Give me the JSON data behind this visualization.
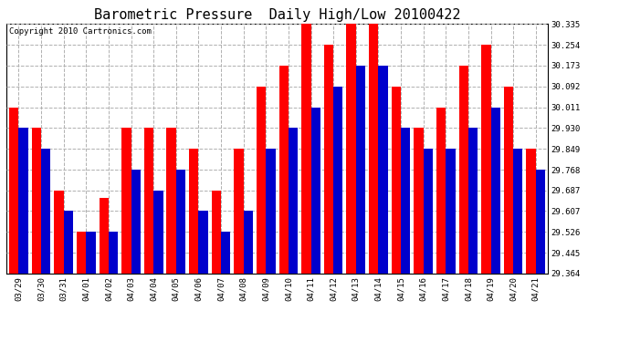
{
  "title": "Barometric Pressure  Daily High/Low 20100422",
  "copyright": "Copyright 2010 Cartronics.com",
  "categories": [
    "03/29",
    "03/30",
    "03/31",
    "04/01",
    "04/02",
    "04/03",
    "04/04",
    "04/05",
    "04/06",
    "04/07",
    "04/08",
    "04/09",
    "04/10",
    "04/11",
    "04/12",
    "04/13",
    "04/14",
    "04/15",
    "04/16",
    "04/17",
    "04/18",
    "04/19",
    "04/20",
    "04/21"
  ],
  "highs": [
    30.011,
    29.93,
    29.687,
    29.526,
    29.66,
    29.93,
    29.93,
    29.93,
    29.849,
    29.687,
    29.849,
    30.092,
    30.173,
    30.335,
    30.254,
    30.335,
    30.335,
    30.092,
    29.93,
    30.011,
    30.173,
    30.254,
    30.092,
    29.849
  ],
  "lows": [
    29.93,
    29.849,
    29.607,
    29.526,
    29.526,
    29.768,
    29.687,
    29.768,
    29.607,
    29.526,
    29.607,
    29.849,
    29.93,
    30.011,
    30.092,
    30.173,
    30.173,
    29.93,
    29.849,
    29.849,
    29.93,
    30.011,
    29.849,
    29.768
  ],
  "high_color": "#ff0000",
  "low_color": "#0000cc",
  "background_color": "#ffffff",
  "plot_background": "#ffffff",
  "grid_color": "#b0b0b0",
  "yticks": [
    29.364,
    29.445,
    29.526,
    29.607,
    29.687,
    29.768,
    29.849,
    29.93,
    30.011,
    30.092,
    30.173,
    30.254,
    30.335
  ],
  "ytick_labels": [
    "29.364",
    "29.445",
    "29.526",
    "29.607",
    "29.687",
    "29.768",
    "29.849",
    "29.930",
    "30.011",
    "30.092",
    "30.173",
    "30.254",
    "30.335"
  ],
  "ymin": 29.364,
  "ymax": 30.335,
  "title_fontsize": 11,
  "copyright_fontsize": 6.5,
  "tick_fontsize": 6.5,
  "bar_width": 0.42
}
